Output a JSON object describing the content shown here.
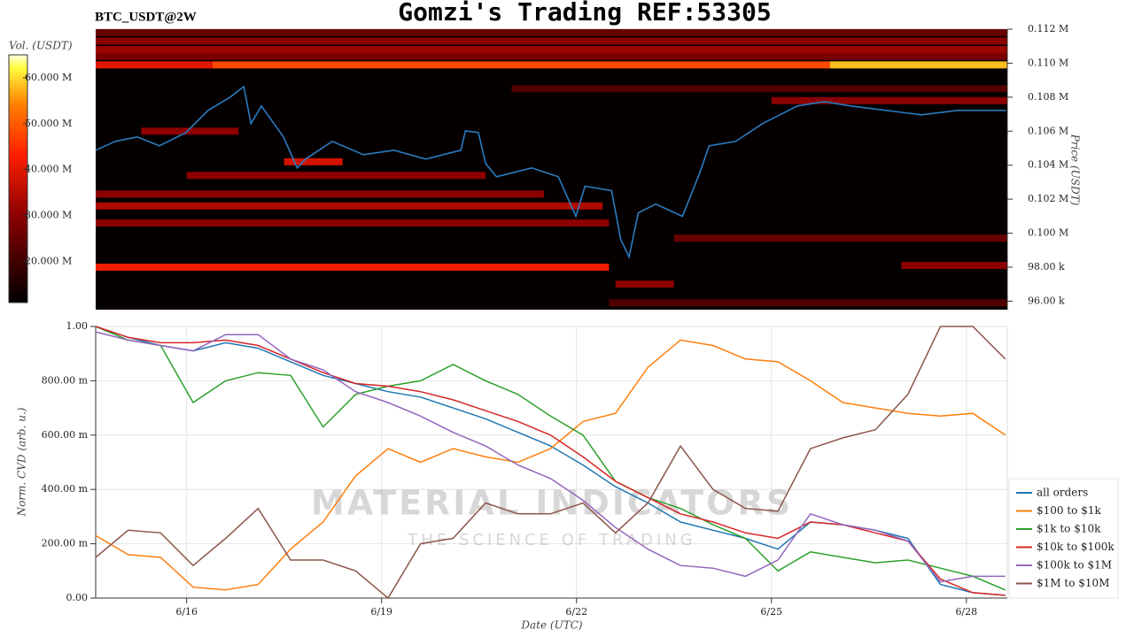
{
  "chart_data": [
    {
      "type": "heatmap",
      "title": "Gomzi's Trading REF:53305",
      "subtitle": "BTC_USDT@2W",
      "ylabel": "Price (USDT)",
      "xlim": [
        14.6,
        28.63
      ],
      "ylim": [
        95500,
        112000
      ],
      "yticks": [
        {
          "value": 96000,
          "label": "96.00 k"
        },
        {
          "value": 98000,
          "label": "98.00 k"
        },
        {
          "value": 100000,
          "label": "0.100 M"
        },
        {
          "value": 102000,
          "label": "0.102 M"
        },
        {
          "value": 104000,
          "label": "0.104 M"
        },
        {
          "value": 106000,
          "label": "0.106 M"
        },
        {
          "value": 108000,
          "label": "0.108 M"
        },
        {
          "value": 110000,
          "label": "0.110 M"
        },
        {
          "value": 112000,
          "label": "0.112 M"
        }
      ],
      "color": "#2a7bc0",
      "x": [
        14.6,
        14.9,
        15.24,
        15.58,
        15.99,
        16.33,
        16.67,
        16.88,
        16.99,
        17.15,
        17.49,
        17.7,
        17.83,
        18.24,
        18.72,
        19.19,
        19.68,
        20.22,
        20.29,
        20.49,
        20.6,
        20.77,
        21.31,
        21.72,
        21.99,
        22.13,
        22.54,
        22.68,
        22.81,
        22.95,
        23.22,
        23.63,
        23.9,
        24.04,
        24.45,
        24.86,
        25.13,
        25.4,
        25.81,
        26.22,
        26.77,
        27.31,
        27.86,
        28.61
      ],
      "values": [
        104880,
        105400,
        105660,
        105140,
        105920,
        107220,
        108000,
        108620,
        106440,
        107480,
        105660,
        103840,
        104360,
        105400,
        104620,
        104880,
        104360,
        104880,
        106020,
        105920,
        104100,
        103320,
        103840,
        103320,
        100990,
        102760,
        102500,
        99640,
        98600,
        101190,
        101710,
        100990,
        103580,
        105140,
        105400,
        106440,
        106960,
        107480,
        107740,
        107480,
        107220,
        106960,
        107220,
        107220
      ],
      "colorbar": {
        "label": "Vol. (USDT)",
        "lim": [
          11000000,
          65000000
        ],
        "ticks": [
          {
            "value": 20000000,
            "label": "20.000 M"
          },
          {
            "value": 30000000,
            "label": "30.000 M"
          },
          {
            "value": 40000000,
            "label": "40.000 M"
          },
          {
            "value": 50000000,
            "label": "50.000 M"
          },
          {
            "value": 60000000,
            "label": "60.000 M"
          }
        ]
      },
      "levels": [
        {
          "price": 111800,
          "x0": 14.6,
          "x1": 28.63,
          "volume": 25000000
        },
        {
          "price": 111300,
          "x0": 14.6,
          "x1": 28.63,
          "volume": 30000000
        },
        {
          "price": 110800,
          "x0": 14.6,
          "x1": 28.63,
          "volume": 32000000
        },
        {
          "price": 110400,
          "x0": 14.6,
          "x1": 28.63,
          "volume": 28000000
        },
        {
          "price": 109900,
          "x0": 14.6,
          "x1": 16.4,
          "volume": 40000000
        },
        {
          "price": 109900,
          "x0": 16.4,
          "x1": 25.9,
          "volume": 48000000
        },
        {
          "price": 109900,
          "x0": 25.9,
          "x1": 28.63,
          "volume": 58000000
        },
        {
          "price": 108500,
          "x0": 21,
          "x1": 28.63,
          "volume": 22000000
        },
        {
          "price": 107800,
          "x0": 25,
          "x1": 28.63,
          "volume": 30000000
        },
        {
          "price": 106000,
          "x0": 15.3,
          "x1": 16.8,
          "volume": 30000000
        },
        {
          "price": 104200,
          "x0": 17.5,
          "x1": 18.4,
          "volume": 38000000
        },
        {
          "price": 103400,
          "x0": 16,
          "x1": 20.6,
          "volume": 30000000
        },
        {
          "price": 102300,
          "x0": 14.6,
          "x1": 21.5,
          "volume": 30000000
        },
        {
          "price": 101600,
          "x0": 14.6,
          "x1": 22.4,
          "volume": 34000000
        },
        {
          "price": 100600,
          "x0": 14.6,
          "x1": 22.5,
          "volume": 30000000
        },
        {
          "price": 99700,
          "x0": 23.5,
          "x1": 28.63,
          "volume": 25000000
        },
        {
          "price": 98000,
          "x0": 14.6,
          "x1": 22.5,
          "volume": 42000000
        },
        {
          "price": 98100,
          "x0": 27,
          "x1": 28.63,
          "volume": 30000000
        },
        {
          "price": 97000,
          "x0": 22.6,
          "x1": 23.5,
          "volume": 30000000
        },
        {
          "price": 95900,
          "x0": 22.5,
          "x1": 28.63,
          "volume": 22000000
        }
      ]
    },
    {
      "type": "line",
      "xlabel": "Date (UTC)",
      "ylabel": "Norm. CVD (arb. u.)",
      "xlim": [
        14.6,
        28.63
      ],
      "ylim": [
        0,
        1
      ],
      "xticks": [
        {
          "value": 16,
          "label": "6/16"
        },
        {
          "value": 19,
          "label": "6/19"
        },
        {
          "value": 22,
          "label": "6/22"
        },
        {
          "value": 25,
          "label": "6/25"
        },
        {
          "value": 28,
          "label": "6/28"
        }
      ],
      "yticks": [
        {
          "value": 0,
          "label": "0.00"
        },
        {
          "value": 0.2,
          "label": "200.00 m"
        },
        {
          "value": 0.4,
          "label": "400.00 m"
        },
        {
          "value": 0.6,
          "label": "600.00 m"
        },
        {
          "value": 0.8,
          "label": "800.00 m"
        },
        {
          "value": 1,
          "label": "1.00"
        }
      ],
      "grid": true,
      "legend": "lower right",
      "watermark": {
        "title": "MATERIAL INDICATORS",
        "subtitle": "THE SCIENCE OF TRADING"
      },
      "x": [
        14.6,
        15.1,
        15.6,
        16.1,
        16.6,
        17.1,
        17.6,
        18.1,
        18.6,
        19.1,
        19.6,
        20.1,
        20.6,
        21.1,
        21.6,
        22.1,
        22.6,
        23.1,
        23.6,
        24.1,
        24.6,
        25.1,
        25.6,
        26.1,
        26.6,
        27.1,
        27.6,
        28.1,
        28.6
      ],
      "series": [
        {
          "name": "all orders",
          "color": "#1f77b4",
          "values": [
            1.0,
            0.96,
            0.93,
            0.91,
            0.94,
            0.92,
            0.87,
            0.82,
            0.79,
            0.76,
            0.74,
            0.7,
            0.66,
            0.61,
            0.56,
            0.49,
            0.41,
            0.35,
            0.28,
            0.25,
            0.22,
            0.18,
            0.28,
            0.27,
            0.25,
            0.22,
            0.05,
            0.02,
            0.01
          ]
        },
        {
          "name": "$100 to $1k",
          "color": "#ff7f0e",
          "values": [
            0.23,
            0.16,
            0.15,
            0.04,
            0.03,
            0.05,
            0.18,
            0.28,
            0.45,
            0.55,
            0.5,
            0.55,
            0.52,
            0.5,
            0.55,
            0.65,
            0.68,
            0.85,
            0.95,
            0.93,
            0.88,
            0.87,
            0.8,
            0.72,
            0.7,
            0.68,
            0.67,
            0.68,
            0.6
          ]
        },
        {
          "name": "$1k to $10k",
          "color": "#2ca02c",
          "values": [
            1.0,
            0.95,
            0.93,
            0.72,
            0.8,
            0.83,
            0.82,
            0.63,
            0.75,
            0.78,
            0.8,
            0.86,
            0.8,
            0.75,
            0.67,
            0.6,
            0.43,
            0.37,
            0.33,
            0.27,
            0.22,
            0.1,
            0.17,
            0.15,
            0.13,
            0.14,
            0.11,
            0.08,
            0.03
          ]
        },
        {
          "name": "$10k to $100k",
          "color": "#d62728",
          "values": [
            1.0,
            0.96,
            0.94,
            0.94,
            0.95,
            0.93,
            0.88,
            0.83,
            0.79,
            0.78,
            0.76,
            0.73,
            0.69,
            0.65,
            0.6,
            0.52,
            0.43,
            0.37,
            0.31,
            0.28,
            0.24,
            0.22,
            0.28,
            0.27,
            0.24,
            0.21,
            0.07,
            0.02,
            0.01
          ]
        },
        {
          "name": "$100k to $1M",
          "color": "#9467bd",
          "values": [
            0.98,
            0.95,
            0.93,
            0.91,
            0.97,
            0.97,
            0.88,
            0.84,
            0.76,
            0.72,
            0.67,
            0.61,
            0.56,
            0.49,
            0.44,
            0.36,
            0.26,
            0.18,
            0.12,
            0.11,
            0.08,
            0.14,
            0.31,
            0.27,
            0.25,
            0.21,
            0.06,
            0.08,
            0.08
          ]
        },
        {
          "name": "$1M to $10M",
          "color": "#8c564b",
          "values": [
            0.15,
            0.25,
            0.24,
            0.12,
            0.22,
            0.33,
            0.14,
            0.14,
            0.1,
            0.0,
            0.2,
            0.22,
            0.35,
            0.31,
            0.31,
            0.35,
            0.24,
            0.35,
            0.56,
            0.4,
            0.33,
            0.32,
            0.55,
            0.59,
            0.62,
            0.75,
            1.0,
            1.0,
            0.88
          ]
        }
      ]
    }
  ]
}
